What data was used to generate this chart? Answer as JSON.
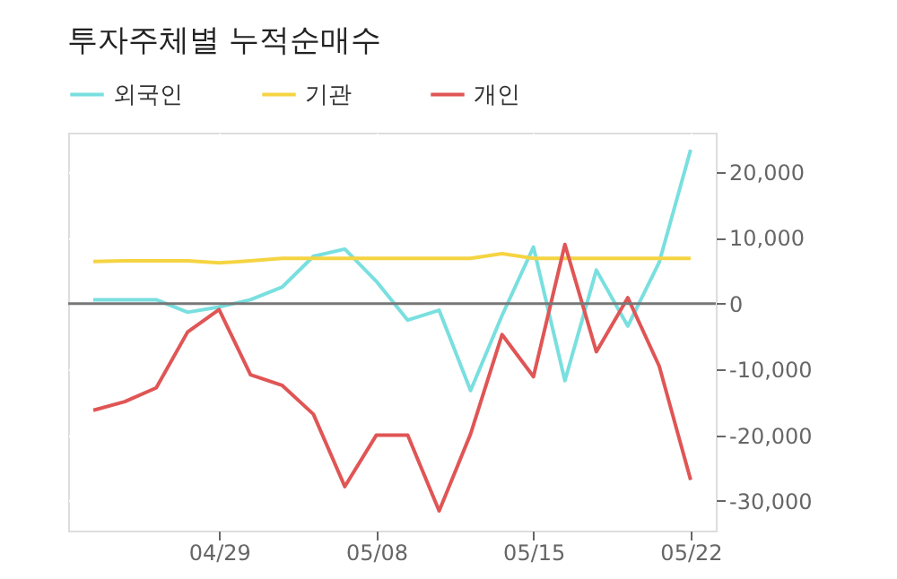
{
  "chart_data": {
    "type": "line",
    "title": "투자주체별 누적순매수",
    "categories": [
      null,
      null,
      null,
      null,
      "04/29",
      null,
      null,
      null,
      null,
      "05/08",
      null,
      null,
      null,
      null,
      "05/15",
      null,
      null,
      null,
      null,
      "05/22"
    ],
    "series": [
      {
        "name": "외국인",
        "color": "#79dfdf",
        "values": [
          600,
          600,
          600,
          -1300,
          -500,
          600,
          2500,
          7200,
          8300,
          3400,
          -2500,
          -1000,
          -13200,
          -1800,
          8600,
          -11700,
          5100,
          -3400,
          6300,
          23400
        ]
      },
      {
        "name": "기관",
        "color": "#f5d442",
        "values": [
          6400,
          6500,
          6500,
          6500,
          6200,
          6500,
          6900,
          6900,
          6900,
          6900,
          6900,
          6900,
          6900,
          7600,
          6900,
          6900,
          6900,
          6900,
          6900,
          6900
        ]
      },
      {
        "name": "개인",
        "color": "#e05555",
        "values": [
          -16200,
          -14900,
          -12800,
          -4300,
          -900,
          -10800,
          -12400,
          -16800,
          -27800,
          -20000,
          -20000,
          -31500,
          -19800,
          -4700,
          -11100,
          9000,
          -7300,
          900,
          -9500,
          -26800
        ]
      }
    ],
    "ylim": [
      -34500,
      26000
    ],
    "yticks": [
      {
        "value": -30000,
        "label": "-30,000"
      },
      {
        "value": -20000,
        "label": "-20,000"
      },
      {
        "value": -10000,
        "label": "-10,000"
      },
      0,
      {
        "value": 10000,
        "label": "10,000"
      },
      {
        "value": 20000,
        "label": "20,000"
      }
    ],
    "ref_lines": [
      {
        "axis": "y",
        "value": 0,
        "color": "#777777"
      }
    ],
    "grid": true,
    "legend": "top left",
    "marker": "none",
    "line_style": "solid"
  }
}
